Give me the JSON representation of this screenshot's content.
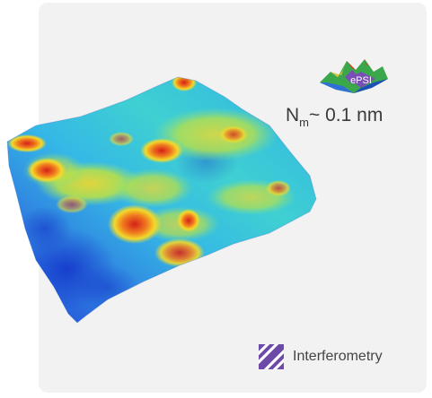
{
  "logo": {
    "text": "ePSI",
    "color": "#7a4fb5"
  },
  "metric": {
    "symbol": "N",
    "subscript": "m",
    "value": "~ 0.1 nm"
  },
  "technique": {
    "label": "Interferometry",
    "icon": "diagonal-stripes-icon",
    "color": "#6e4aa8"
  },
  "colors": {
    "surface_low": "#1d3fd6",
    "surface_mid": "#35b8e6",
    "surface_high": "#f3d92a",
    "surface_peak": "#e0301e"
  }
}
